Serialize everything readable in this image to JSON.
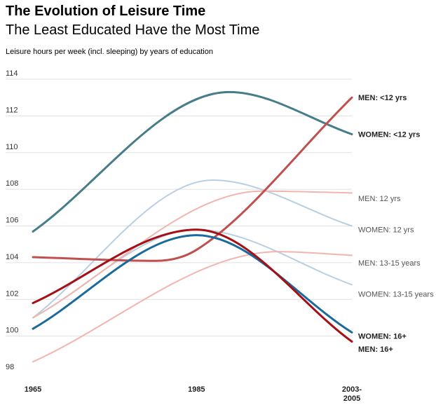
{
  "header": {
    "title": "The Evolution of Leisure Time",
    "subtitle": "The Least Educated Have the Most Time",
    "ylabel": "Leisure hours per week (incl. sleeping) by years of education"
  },
  "colors": {
    "teal": "#467d89",
    "rust": "#c0504d",
    "darkred": "#a50f15",
    "blue": "#1a6a9a",
    "lightblue": "#b8cfe3",
    "pink": "#f2b5ae",
    "grid": "#e0e0e0"
  },
  "chart_data": {
    "type": "line",
    "title": "The Evolution of Leisure Time",
    "subtitle": "The Least Educated Have the Most Time",
    "ylabel": "Leisure hours per week (incl. sleeping) by years of education",
    "xlabel": "",
    "x_ticks": [
      "1965",
      "1985",
      "2003-2005"
    ],
    "x_tick_lines": [
      [
        "1965"
      ],
      [
        "1985"
      ],
      [
        "2003-",
        "2005"
      ]
    ],
    "ylim": [
      98,
      114
    ],
    "y_ticks": [
      98,
      100,
      102,
      104,
      106,
      108,
      110,
      112,
      114
    ],
    "grid": true,
    "series": [
      {
        "name": "WOMEN: 13-15 years",
        "color": "#b8cfe3",
        "width": 2,
        "bold": false,
        "label_color": "#555555",
        "points": [
          [
            1965,
            101.0
          ],
          [
            1985,
            105.8
          ],
          [
            2004,
            102.8
          ]
        ]
      },
      {
        "name": "WOMEN: 12 yrs",
        "color": "#b8cfe3",
        "width": 2,
        "bold": false,
        "label_color": "#555555",
        "points": [
          [
            1965,
            101.0
          ],
          [
            1987,
            108.5
          ],
          [
            2004,
            106.0
          ]
        ]
      },
      {
        "name": "MEN: 12 yrs",
        "color": "#f2b5ae",
        "width": 2,
        "bold": false,
        "label_color": "#555555",
        "points": [
          [
            1965,
            101.0
          ],
          [
            1993,
            107.9
          ],
          [
            2004,
            107.8
          ]
        ]
      },
      {
        "name": "MEN: 13-15 years",
        "color": "#f2b5ae",
        "width": 2,
        "bold": false,
        "label_color": "#555555",
        "points": [
          [
            1965,
            98.6
          ],
          [
            1995,
            104.6
          ],
          [
            2004,
            104.4
          ]
        ]
      },
      {
        "name": "WOMEN: <12 yrs",
        "color": "#467d89",
        "width": 3,
        "bold": true,
        "label_color": "#222222",
        "points": [
          [
            1965,
            105.7
          ],
          [
            1989,
            113.3
          ],
          [
            2004,
            111.0
          ]
        ]
      },
      {
        "name": "MEN: <12 yrs",
        "color": "#c0504d",
        "width": 3,
        "bold": true,
        "label_color": "#222222",
        "points": [
          [
            1965,
            104.3
          ],
          [
            1980,
            104.1
          ],
          [
            1985,
            104.7
          ],
          [
            2004,
            113.0
          ]
        ]
      },
      {
        "name": "WOMEN: 16+",
        "color": "#1a6a9a",
        "width": 3,
        "bold": true,
        "label_color": "#222222",
        "points": [
          [
            1965,
            100.4
          ],
          [
            1985,
            105.5
          ],
          [
            2004,
            100.2
          ]
        ]
      },
      {
        "name": "MEN: 16+",
        "color": "#a50f15",
        "width": 3,
        "bold": true,
        "label_color": "#222222",
        "points": [
          [
            1965,
            101.8
          ],
          [
            1985,
            105.8
          ],
          [
            2004,
            99.7
          ]
        ]
      }
    ]
  }
}
